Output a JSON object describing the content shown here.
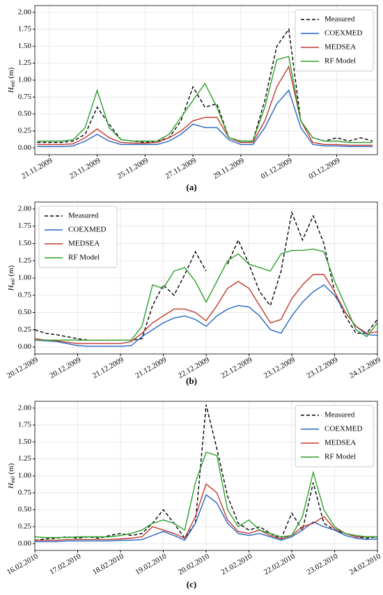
{
  "chart_data": [
    {
      "type": "line",
      "caption": "(a)",
      "ylabel": {
        "main": "H",
        "sub": "m0",
        "unit": "(m)"
      },
      "legend": "upper right",
      "grid": true,
      "x": [
        -0.5,
        0,
        0.5,
        1,
        1.5,
        2,
        2.5,
        3,
        3.5,
        4,
        4.5,
        5,
        5.5,
        6,
        6.5,
        7,
        7.5,
        8,
        8.5,
        9,
        9.5,
        10,
        10.5,
        11,
        11.5,
        12,
        12.5,
        13,
        13.5
      ],
      "xlim": [
        -0.6,
        13.7
      ],
      "xticks": [
        {
          "value": 0,
          "label": "21.11.2009"
        },
        {
          "value": 2,
          "label": "23.11.2009"
        },
        {
          "value": 4,
          "label": "25.11.2009"
        },
        {
          "value": 6,
          "label": "27.11.2009"
        },
        {
          "value": 8,
          "label": "29.11.2009"
        },
        {
          "value": 10,
          "label": "01.12.2009"
        },
        {
          "value": 12,
          "label": "03.12.2009"
        }
      ],
      "ylim": [
        -0.1,
        2.1
      ],
      "yticks": [
        {
          "value": 0,
          "label": "0.00"
        },
        {
          "value": 0.25,
          "label": "0.25"
        },
        {
          "value": 0.5,
          "label": "0.50"
        },
        {
          "value": 0.75,
          "label": "0.75"
        },
        {
          "value": 1,
          "label": "1.00"
        },
        {
          "value": 1.25,
          "label": "1.25"
        },
        {
          "value": 1.5,
          "label": "1.50"
        },
        {
          "value": 1.75,
          "label": "1.75"
        },
        {
          "value": 2,
          "label": "2.00"
        }
      ],
      "series": [
        {
          "name": "Measured",
          "color": "#000000",
          "dash": true,
          "values": [
            0.08,
            0.08,
            0.08,
            0.1,
            0.2,
            0.6,
            0.35,
            0.12,
            0.1,
            0.08,
            0.1,
            0.15,
            0.4,
            0.9,
            0.6,
            0.65,
            0.15,
            0.1,
            0.1,
            0.7,
            1.5,
            1.75,
            0.4,
            0.15,
            0.1,
            0.15,
            0.1,
            0.15,
            0.1
          ]
        },
        {
          "name": "COEXMED",
          "color": "#2563c4",
          "dash": false,
          "values": [
            0.02,
            0.02,
            0.02,
            0.03,
            0.1,
            0.2,
            0.1,
            0.05,
            0.05,
            0.05,
            0.05,
            0.1,
            0.2,
            0.35,
            0.3,
            0.3,
            0.12,
            0.05,
            0.05,
            0.3,
            0.65,
            0.85,
            0.3,
            0.05,
            0.03,
            0.03,
            0.02,
            0.02,
            0.02
          ]
        },
        {
          "name": "MEDSEA",
          "color": "#c0392b",
          "dash": false,
          "values": [
            0.05,
            0.05,
            0.05,
            0.06,
            0.15,
            0.28,
            0.15,
            0.08,
            0.07,
            0.07,
            0.08,
            0.15,
            0.25,
            0.4,
            0.45,
            0.45,
            0.15,
            0.08,
            0.08,
            0.4,
            0.9,
            1.2,
            0.4,
            0.08,
            0.05,
            0.05,
            0.04,
            0.04,
            0.04
          ]
        },
        {
          "name": "RF Model",
          "color": "#2ca02c",
          "dash": false,
          "values": [
            0.1,
            0.1,
            0.1,
            0.12,
            0.3,
            0.85,
            0.3,
            0.12,
            0.1,
            0.1,
            0.1,
            0.2,
            0.45,
            0.7,
            0.95,
            0.6,
            0.15,
            0.1,
            0.1,
            0.6,
            1.3,
            1.35,
            0.4,
            0.15,
            0.1,
            0.1,
            0.08,
            0.08,
            0.08
          ]
        }
      ]
    },
    {
      "type": "line",
      "caption": "(b)",
      "ylabel": {
        "main": "H",
        "sub": "m0",
        "unit": "(m)"
      },
      "legend": "upper left",
      "grid": true,
      "x": [
        0,
        0.125,
        0.25,
        0.375,
        0.5,
        0.625,
        0.75,
        0.875,
        1,
        1.125,
        1.25,
        1.375,
        1.5,
        1.625,
        1.75,
        1.875,
        2,
        2.125,
        2.25,
        2.375,
        2.5,
        2.625,
        2.75,
        2.875,
        3,
        3.125,
        3.25,
        3.375,
        3.5,
        3.625,
        3.75,
        3.875,
        4
      ],
      "xlim": [
        0,
        4
      ],
      "xticks": [
        {
          "value": 0,
          "label": "20.12.2009"
        },
        {
          "value": 0.5,
          "label": "20.12.2009"
        },
        {
          "value": 1,
          "label": "21.12.2009"
        },
        {
          "value": 1.5,
          "label": "21.12.2009"
        },
        {
          "value": 2,
          "label": "22.12.2009"
        },
        {
          "value": 2.5,
          "label": "22.12.2009"
        },
        {
          "value": 3,
          "label": "23.12.2009"
        },
        {
          "value": 3.5,
          "label": "23.12.2009"
        },
        {
          "value": 4,
          "label": "24.12.2009"
        }
      ],
      "ylim": [
        -0.1,
        2.1
      ],
      "yticks": [
        {
          "value": 0,
          "label": "0.00"
        },
        {
          "value": 0.25,
          "label": "0.25"
        },
        {
          "value": 0.5,
          "label": "0.50"
        },
        {
          "value": 0.75,
          "label": "0.75"
        },
        {
          "value": 1,
          "label": "1.00"
        },
        {
          "value": 1.25,
          "label": "1.25"
        },
        {
          "value": 1.5,
          "label": "1.50"
        },
        {
          "value": 1.75,
          "label": "1.75"
        },
        {
          "value": 2,
          "label": "2.00"
        }
      ],
      "series": [
        {
          "name": "Measured",
          "color": "#000000",
          "dash": true,
          "values": [
            0.25,
            0.2,
            0.18,
            0.15,
            0.12,
            0.1,
            0.1,
            0.1,
            0.1,
            0.1,
            0.12,
            0.6,
            0.9,
            0.75,
            1.05,
            1.38,
            1.1,
            null,
            1.2,
            1.55,
            1.2,
            0.8,
            0.6,
            1.1,
            1.95,
            1.55,
            1.9,
            1.5,
            0.8,
            0.45,
            0.2,
            0.2,
            0.4
          ]
        },
        {
          "name": "COEXMED",
          "color": "#2563c4",
          "dash": false,
          "values": [
            0.1,
            0.09,
            0.08,
            0.05,
            0.02,
            0.01,
            0.01,
            0.01,
            0.01,
            0.02,
            0.15,
            0.25,
            0.35,
            0.42,
            0.45,
            0.4,
            0.3,
            0.45,
            0.55,
            0.6,
            0.58,
            0.45,
            0.25,
            0.2,
            0.45,
            0.65,
            0.8,
            0.9,
            0.75,
            0.5,
            0.3,
            0.18,
            0.17
          ]
        },
        {
          "name": "MEDSEA",
          "color": "#c0392b",
          "dash": false,
          "values": [
            0.12,
            0.1,
            0.09,
            0.07,
            0.05,
            0.05,
            0.05,
            0.05,
            0.05,
            0.08,
            0.2,
            0.35,
            0.45,
            0.55,
            0.55,
            0.5,
            0.38,
            0.6,
            0.85,
            0.95,
            0.85,
            0.6,
            0.35,
            0.4,
            0.7,
            0.9,
            1.05,
            1.05,
            0.8,
            0.5,
            0.3,
            0.2,
            0.22
          ]
        },
        {
          "name": "RF Model",
          "color": "#2ca02c",
          "dash": false,
          "values": [
            0.1,
            0.1,
            0.1,
            0.1,
            0.1,
            0.1,
            0.1,
            0.1,
            0.1,
            0.1,
            0.3,
            0.9,
            0.85,
            1.1,
            1.15,
            0.95,
            0.65,
            0.95,
            1.25,
            1.35,
            1.2,
            1.15,
            1.1,
            1.35,
            1.4,
            1.4,
            1.42,
            1.38,
            0.95,
            0.6,
            0.25,
            0.15,
            0.35
          ]
        }
      ]
    },
    {
      "type": "line",
      "caption": "(c)",
      "ylabel": {
        "main": "H",
        "sub": "m0",
        "unit": "(m)"
      },
      "legend": "upper right",
      "grid": true,
      "x": [
        0,
        0.25,
        0.5,
        0.75,
        1,
        1.25,
        1.5,
        1.75,
        2,
        2.25,
        2.5,
        2.75,
        3,
        3.25,
        3.5,
        3.75,
        4,
        4.25,
        4.5,
        4.75,
        5,
        5.25,
        5.5,
        5.75,
        6,
        6.25,
        6.5,
        6.75,
        7,
        7.25,
        7.5,
        7.75,
        8
      ],
      "xlim": [
        0,
        8
      ],
      "xticks": [
        {
          "value": 0,
          "label": "16.02.2010"
        },
        {
          "value": 1,
          "label": "17.02.2010"
        },
        {
          "value": 2,
          "label": "18.02.2010"
        },
        {
          "value": 3,
          "label": "19.02.2010"
        },
        {
          "value": 4,
          "label": "20.02.2010"
        },
        {
          "value": 5,
          "label": "21.02.2010"
        },
        {
          "value": 6,
          "label": "22.02.2010"
        },
        {
          "value": 7,
          "label": "23.02.2010"
        },
        {
          "value": 8,
          "label": "24.02.2010"
        }
      ],
      "ylim": [
        -0.1,
        2.1
      ],
      "yticks": [
        {
          "value": 0,
          "label": "0.00"
        },
        {
          "value": 0.25,
          "label": "0.25"
        },
        {
          "value": 0.5,
          "label": "0.50"
        },
        {
          "value": 0.75,
          "label": "0.75"
        },
        {
          "value": 1,
          "label": "1.00"
        },
        {
          "value": 1.25,
          "label": "1.25"
        },
        {
          "value": 1.5,
          "label": "1.50"
        },
        {
          "value": 1.75,
          "label": "1.75"
        },
        {
          "value": 2,
          "label": "2.00"
        }
      ],
      "series": [
        {
          "name": "Measured",
          "color": "#000000",
          "dash": true,
          "values": [
            0.05,
            0.07,
            0.08,
            0.1,
            0.08,
            0.1,
            0.08,
            0.12,
            0.15,
            0.12,
            0.15,
            0.3,
            0.5,
            0.3,
            0.08,
            0.3,
            2.05,
            1.4,
            0.7,
            0.3,
            0.2,
            0.25,
            0.15,
            0.07,
            0.45,
            0.2,
            0.9,
            0.3,
            0.2,
            0.15,
            0.1,
            0.08,
            0.1
          ]
        },
        {
          "name": "COEXMED",
          "color": "#2563c4",
          "dash": false,
          "values": [
            0.03,
            0.03,
            0.03,
            0.04,
            0.04,
            0.04,
            0.04,
            0.04,
            0.05,
            0.05,
            0.06,
            0.12,
            0.18,
            0.12,
            0.05,
            0.3,
            0.72,
            0.6,
            0.3,
            0.15,
            0.12,
            0.15,
            0.1,
            0.05,
            0.1,
            0.2,
            0.32,
            0.25,
            0.2,
            0.12,
            0.08,
            0.06,
            0.07
          ]
        },
        {
          "name": "MEDSEA",
          "color": "#c0392b",
          "dash": false,
          "values": [
            0.05,
            0.05,
            0.05,
            0.06,
            0.06,
            0.06,
            0.06,
            0.06,
            0.07,
            0.08,
            0.1,
            0.25,
            0.2,
            0.15,
            0.08,
            0.4,
            0.88,
            0.75,
            0.35,
            0.18,
            0.15,
            0.2,
            0.12,
            0.07,
            0.12,
            0.25,
            0.3,
            0.4,
            0.22,
            0.15,
            0.1,
            0.1,
            0.1
          ]
        },
        {
          "name": "RF Model",
          "color": "#2ca02c",
          "dash": false,
          "values": [
            0.1,
            0.09,
            0.09,
            0.09,
            0.1,
            0.1,
            0.1,
            0.1,
            0.12,
            0.15,
            0.2,
            0.3,
            0.35,
            0.3,
            0.2,
            0.9,
            1.35,
            1.3,
            0.5,
            0.25,
            0.35,
            0.2,
            0.15,
            0.1,
            0.12,
            0.4,
            1.05,
            0.5,
            0.25,
            0.15,
            0.12,
            0.1,
            0.1
          ]
        }
      ]
    }
  ]
}
